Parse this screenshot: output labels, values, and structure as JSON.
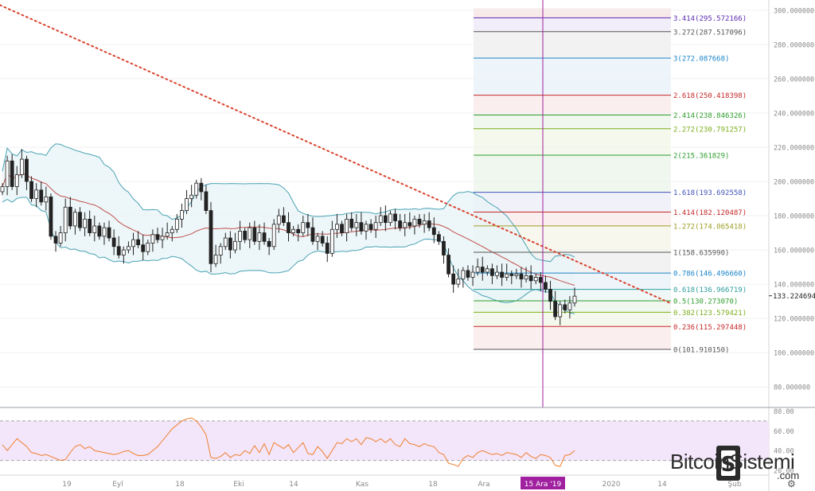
{
  "chart_data": [
    {
      "type": "candlestick",
      "indicators": [
        "bollinger-bands",
        "fibonacci-extension",
        "trendline",
        "crosshair"
      ],
      "price_axis_labels": [
        "300.000000",
        "280.000000",
        "260.000000",
        "240.000000",
        "220.000000",
        "200.000000",
        "180.000000",
        "160.000000",
        "140.000000",
        "120.000000",
        "100.000000",
        "80.000000"
      ],
      "ylim": [
        68,
        306
      ],
      "current_price_label": "133.224694",
      "fib_levels": [
        {
          "ratio": "3.414",
          "price": 295.572166,
          "label": "3.414(295.572166)",
          "color": "#5b2bb0"
        },
        {
          "ratio": "3.272",
          "price": 287.517096,
          "label": "3.272(287.517096)",
          "color": "#555555"
        },
        {
          "ratio": "3",
          "price": 272.087668,
          "label": "3(272.087668)",
          "color": "#1d85c9"
        },
        {
          "ratio": "2.618",
          "price": 250.418398,
          "label": "2.618(250.418398)",
          "color": "#c62828"
        },
        {
          "ratio": "2.414",
          "price": 238.846326,
          "label": "2.414(238.846326)",
          "color": "#2e9d2e"
        },
        {
          "ratio": "2.272",
          "price": 230.791257,
          "label": "2.272(230.791257)",
          "color": "#7cae1c"
        },
        {
          "ratio": "2",
          "price": 215.361829,
          "label": "2(215.361829)",
          "color": "#2e9d2e"
        },
        {
          "ratio": "1.618",
          "price": 193.692558,
          "label": "1.618(193.692558)",
          "color": "#3f51b5"
        },
        {
          "ratio": "1.414",
          "price": 182.120487,
          "label": "1.414(182.120487)",
          "color": "#c62828"
        },
        {
          "ratio": "1.272",
          "price": 174.065418,
          "label": "1.272(174.065418)",
          "color": "#9e9d24"
        },
        {
          "ratio": "1",
          "price": 158.63599,
          "label": "1(158.635990)",
          "color": "#555555"
        },
        {
          "ratio": "0.786",
          "price": 146.49666,
          "label": "0.786(146.496660)",
          "color": "#1d85c9"
        },
        {
          "ratio": "0.618",
          "price": 136.966719,
          "label": "0.618(136.966719)",
          "color": "#2e9d9d"
        },
        {
          "ratio": "0.5",
          "price": 130.27307,
          "label": "0.5(130.273070)",
          "color": "#2e9d2e"
        },
        {
          "ratio": "0.382",
          "price": 123.579421,
          "label": "0.382(123.579421)",
          "color": "#7cae1c"
        },
        {
          "ratio": "0.236",
          "price": 115.297448,
          "label": "0.236(115.297448)",
          "color": "#c62828"
        },
        {
          "ratio": "0",
          "price": 101.91015,
          "label": "0(101.910150)",
          "color": "#555555"
        }
      ],
      "candles": [
        [
          1,
          197
        ],
        [
          2,
          212
        ],
        [
          1,
          197
        ],
        [
          -1,
          204
        ],
        [
          1,
          213
        ],
        [
          -1,
          200
        ],
        [
          -1,
          190
        ],
        [
          1,
          195
        ],
        [
          -1,
          188
        ],
        [
          1,
          191
        ],
        [
          -1,
          168
        ],
        [
          -1,
          164
        ],
        [
          1,
          170
        ],
        [
          1,
          185
        ],
        [
          -1,
          174
        ],
        [
          1,
          182
        ],
        [
          -1,
          173
        ],
        [
          1,
          178
        ],
        [
          -1,
          170
        ],
        [
          1,
          174
        ],
        [
          -1,
          168
        ],
        [
          1,
          173
        ],
        [
          -1,
          167
        ],
        [
          -1,
          162
        ],
        [
          -1,
          157
        ],
        [
          1,
          160
        ],
        [
          1,
          162
        ],
        [
          1,
          166
        ],
        [
          1,
          163
        ],
        [
          -1,
          159
        ],
        [
          -1,
          164
        ],
        [
          1,
          169
        ],
        [
          -1,
          166
        ],
        [
          1,
          168
        ],
        [
          1,
          170
        ],
        [
          -1,
          172
        ],
        [
          1,
          178
        ],
        [
          1,
          183
        ],
        [
          1,
          190
        ],
        [
          1,
          192
        ],
        [
          1,
          199
        ],
        [
          -1,
          194
        ],
        [
          -1,
          183
        ],
        [
          -1,
          152
        ],
        [
          1,
          157
        ],
        [
          1,
          162
        ],
        [
          1,
          167
        ],
        [
          -1,
          160
        ],
        [
          1,
          165
        ],
        [
          1,
          171
        ],
        [
          -1,
          166
        ],
        [
          1,
          173
        ],
        [
          -1,
          165
        ],
        [
          1,
          170
        ],
        [
          -1,
          165
        ],
        [
          -1,
          162
        ],
        [
          1,
          175
        ],
        [
          1,
          180
        ],
        [
          -1,
          176
        ],
        [
          -1,
          170
        ],
        [
          1,
          172
        ],
        [
          -1,
          170
        ],
        [
          1,
          176
        ],
        [
          -1,
          173
        ],
        [
          -1,
          165
        ],
        [
          1,
          168
        ],
        [
          -1,
          164
        ],
        [
          -1,
          158
        ],
        [
          1,
          172
        ],
        [
          1,
          175
        ],
        [
          -1,
          170
        ],
        [
          1,
          178
        ],
        [
          -1,
          173
        ],
        [
          1,
          176
        ],
        [
          -1,
          171
        ],
        [
          1,
          175
        ],
        [
          -1,
          172
        ],
        [
          1,
          176
        ],
        [
          1,
          180
        ],
        [
          -1,
          176
        ],
        [
          1,
          181
        ],
        [
          -1,
          177
        ],
        [
          -1,
          173
        ],
        [
          1,
          176
        ],
        [
          -1,
          174
        ],
        [
          1,
          178
        ],
        [
          -1,
          175
        ],
        [
          1,
          177
        ],
        [
          -1,
          173
        ],
        [
          -1,
          169
        ],
        [
          -1,
          165
        ],
        [
          -1,
          157
        ],
        [
          -1,
          146
        ],
        [
          -1,
          140
        ],
        [
          1,
          143
        ],
        [
          1,
          148
        ],
        [
          -1,
          144
        ],
        [
          1,
          147
        ],
        [
          1,
          150
        ],
        [
          -1,
          147
        ],
        [
          1,
          149
        ],
        [
          -1,
          145
        ],
        [
          1,
          147
        ],
        [
          -1,
          144
        ],
        [
          1,
          146
        ],
        [
          -1,
          145
        ],
        [
          1,
          146
        ],
        [
          -1,
          143
        ],
        [
          1,
          145
        ],
        [
          -1,
          142
        ],
        [
          1,
          144
        ],
        [
          -1,
          141
        ],
        [
          -1,
          137
        ],
        [
          -1,
          130
        ],
        [
          -1,
          121
        ],
        [
          1,
          128
        ],
        [
          -1,
          125
        ],
        [
          1,
          129
        ],
        [
          1,
          133
        ]
      ],
      "rsi": {
        "axis_labels": [
          "80.00",
          "60.00",
          "40.00",
          "20.00"
        ],
        "ylim": [
          16,
          82
        ],
        "band": [
          30,
          70
        ],
        "values": [
          46,
          40,
          46,
          52,
          48,
          44,
          38,
          37,
          35,
          36,
          34,
          32,
          30,
          31,
          38,
          44,
          46,
          42,
          44,
          40,
          39,
          38,
          37,
          36,
          37,
          39,
          40,
          37,
          35,
          35,
          36,
          40,
          44,
          50,
          56,
          62,
          66,
          70,
          72,
          73,
          70,
          64,
          56,
          33,
          32,
          34,
          38,
          33,
          36,
          35,
          40,
          37,
          45,
          38,
          47,
          36,
          48,
          45,
          42,
          46,
          38,
          43,
          48,
          37,
          36,
          44,
          39,
          32,
          40,
          48,
          47,
          52,
          49,
          52,
          46,
          53,
          52,
          49,
          52,
          48,
          52,
          46,
          44,
          52,
          47,
          46,
          44,
          47,
          45,
          44,
          38,
          36,
          27,
          26,
          24,
          32,
          35,
          33,
          38,
          40,
          38,
          36,
          37,
          35,
          38,
          37,
          36,
          33,
          38,
          34,
          32,
          36,
          35,
          33,
          25,
          24,
          35,
          36,
          40
        ]
      },
      "x_axis_labels": [
        "19",
        "Eyl",
        "18",
        "Eki",
        "14",
        "Kas",
        "18",
        "Ara",
        "15 Ara '19",
        "2020",
        "14",
        "Şub"
      ],
      "crosshair_date_label": "15 Ara '19"
    }
  ],
  "watermark": {
    "main": "BitcoinSistemi",
    "suffix": ".com"
  },
  "colors": {
    "bollinger_band": "#4aa3b5",
    "bollinger_fill": "#e8f4f6",
    "basis": "#c0504d",
    "trendline": "#d9442f",
    "crosshair": "#a020a0",
    "rsi_line": "#f0883e",
    "rsi_fill": "#f3e6fb",
    "candle": "#222222"
  },
  "icons": {
    "settings": "gear-icon"
  }
}
